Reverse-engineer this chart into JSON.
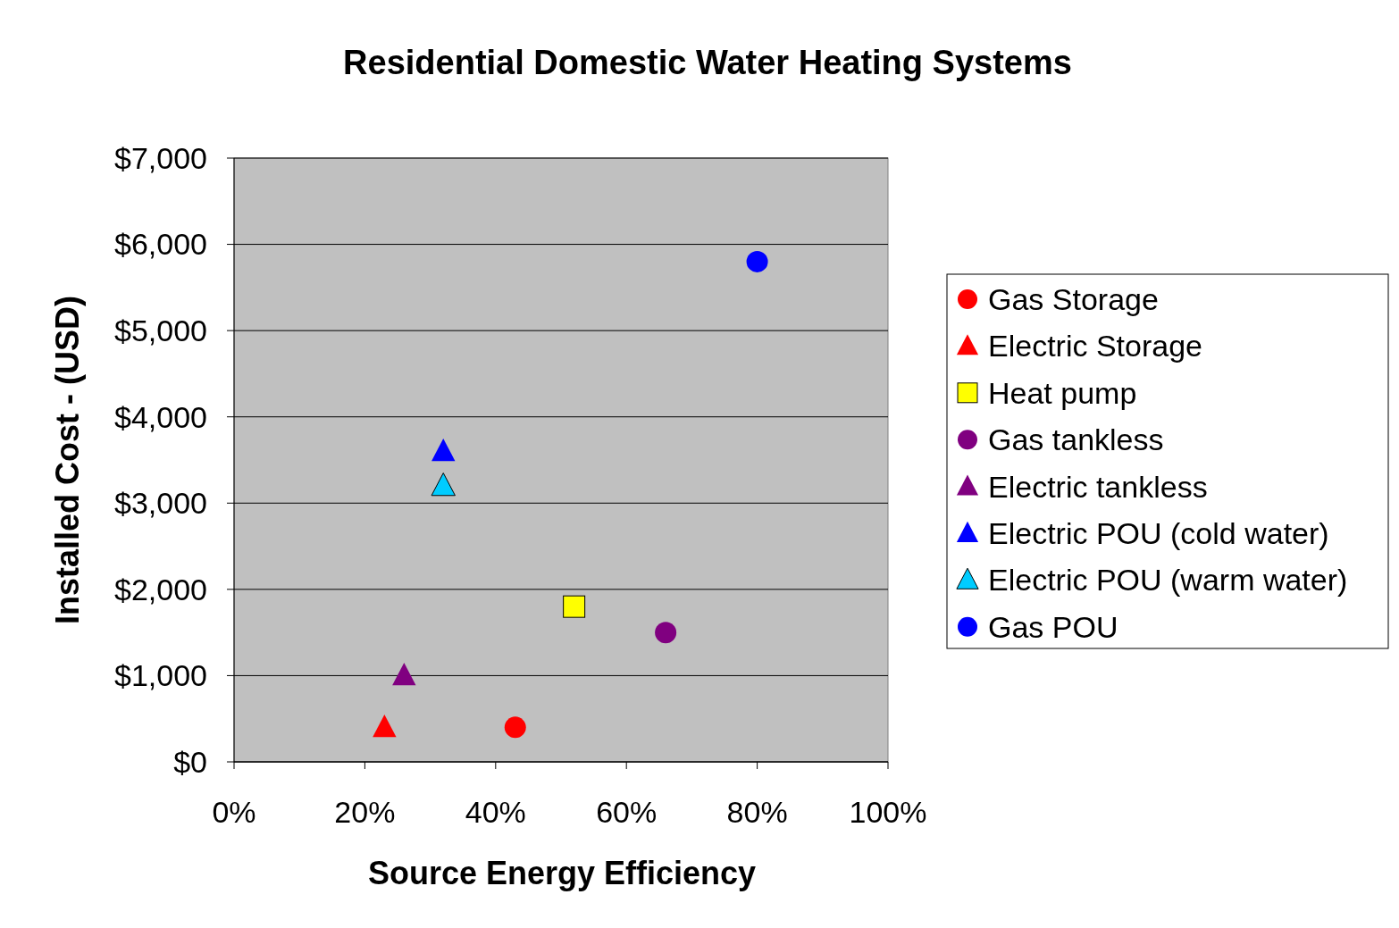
{
  "chart_data": {
    "type": "scatter",
    "title": "Residential Domestic Water Heating Systems",
    "xlabel": "Source Energy Efficiency",
    "ylabel": "Installed Cost - (USD)",
    "xlim": [
      0,
      100
    ],
    "xticks": [
      {
        "value": 0,
        "label": "0%"
      },
      {
        "value": 20,
        "label": "20%"
      },
      {
        "value": 40,
        "label": "40%"
      },
      {
        "value": 60,
        "label": "60%"
      },
      {
        "value": 80,
        "label": "80%"
      },
      {
        "value": 100,
        "label": "100%"
      }
    ],
    "ylim": [
      0,
      7000
    ],
    "yticks": [
      {
        "value": 0,
        "label": "$0"
      },
      {
        "value": 1000,
        "label": "$1,000"
      },
      {
        "value": 2000,
        "label": "$2,000"
      },
      {
        "value": 3000,
        "label": "$3,000"
      },
      {
        "value": 4000,
        "label": "$4,000"
      },
      {
        "value": 5000,
        "label": "$5,000"
      },
      {
        "value": 6000,
        "label": "$6,000"
      },
      {
        "value": 7000,
        "label": "$7,000"
      }
    ],
    "grid": "y",
    "legend": "right",
    "series": [
      {
        "name": "Gas Storage",
        "color": "#ff0000",
        "marker": "circle",
        "x": [
          43
        ],
        "values": [
          400
        ]
      },
      {
        "name": "Electric Storage",
        "color": "#ff0000",
        "marker": "triangle",
        "x": [
          23
        ],
        "values": [
          400
        ]
      },
      {
        "name": "Heat pump",
        "color": "#ffff00",
        "marker": "square",
        "x": [
          52
        ],
        "values": [
          1800
        ]
      },
      {
        "name": "Gas tankless",
        "color": "#800080",
        "marker": "circle",
        "x": [
          66
        ],
        "values": [
          1500
        ]
      },
      {
        "name": "Electric tankless",
        "color": "#800080",
        "marker": "triangle",
        "x": [
          26
        ],
        "values": [
          1000
        ]
      },
      {
        "name": "Electric POU (cold water)",
        "color": "#0000ff",
        "marker": "triangle",
        "x": [
          32
        ],
        "values": [
          3600
        ]
      },
      {
        "name": "Electric POU (warm water)",
        "color": "#00ccff",
        "marker": "triangle",
        "x": [
          32
        ],
        "values": [
          3200
        ]
      },
      {
        "name": "Gas POU",
        "color": "#0000ff",
        "marker": "circle",
        "x": [
          80
        ],
        "values": [
          5800
        ]
      }
    ]
  }
}
